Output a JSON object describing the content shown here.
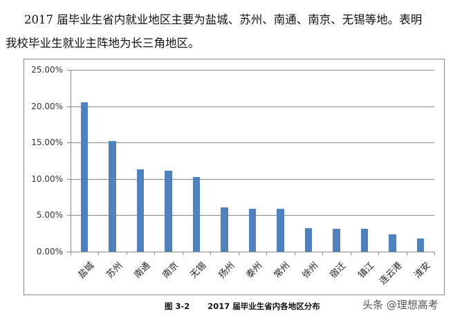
{
  "paragraph": {
    "line1": "2017 届毕业生省内就业地区主要为盐城、苏州、南通、南京、无锡等地。表明",
    "line2": "我校毕业生就业主阵地为长三角地区。"
  },
  "caption": {
    "figure_number": "图 3-2",
    "title": "2017 届毕业生省内各地区分布"
  },
  "watermark": "头条 @理想高考",
  "colors": {
    "bar": "#4f81bd",
    "grid": "#8a8a8a",
    "frame": "#8c8c8c"
  },
  "chart_data": {
    "type": "bar",
    "title": "2017 届毕业生省内各地区分布",
    "xlabel": "",
    "ylabel": "",
    "ylim": [
      0,
      25
    ],
    "yticks": [
      "0.00%",
      "5.00%",
      "10.00%",
      "15.00%",
      "20.00%",
      "25.00%"
    ],
    "grid": true,
    "legend": "none",
    "categories": [
      "盐城",
      "苏州",
      "南通",
      "南京",
      "无锡",
      "扬州",
      "泰州",
      "常州",
      "徐州",
      "宿迁",
      "镇江",
      "连云港",
      "淮安"
    ],
    "values": [
      20.5,
      15.2,
      11.3,
      11.1,
      10.3,
      6.1,
      5.85,
      5.85,
      3.2,
      3.1,
      3.1,
      2.4,
      1.8
    ],
    "unit": "%"
  }
}
